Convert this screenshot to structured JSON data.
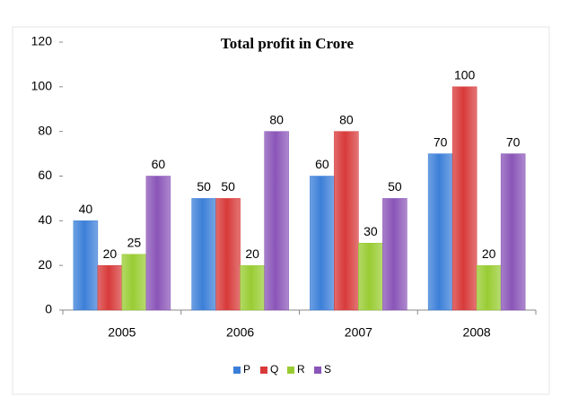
{
  "chart_data": {
    "type": "bar",
    "title": "Total profit in Crore",
    "categories": [
      "2005",
      "2006",
      "2007",
      "2008"
    ],
    "series": [
      {
        "name": "P",
        "color": "#3c7fd8",
        "values": [
          40,
          50,
          60,
          70
        ]
      },
      {
        "name": "Q",
        "color": "#d83a3a",
        "values": [
          20,
          50,
          80,
          100
        ]
      },
      {
        "name": "R",
        "color": "#99cc33",
        "values": [
          25,
          20,
          30,
          20
        ]
      },
      {
        "name": "S",
        "color": "#8a55b8",
        "values": [
          60,
          80,
          50,
          70
        ]
      }
    ],
    "ylim": [
      0,
      120
    ],
    "yticks": [
      0,
      20,
      40,
      60,
      80,
      100,
      120
    ],
    "grid": false,
    "legend": "bottom"
  }
}
